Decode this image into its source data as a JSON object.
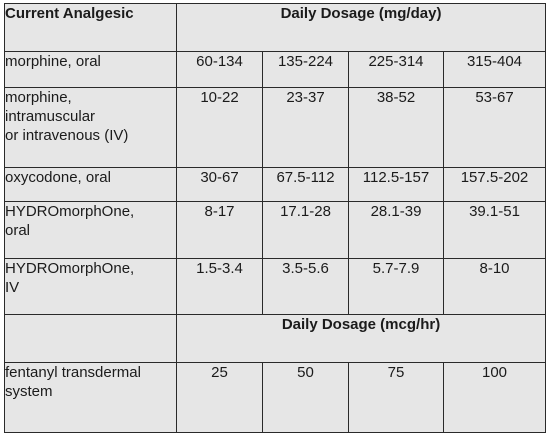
{
  "table": {
    "col_header_left": "Current Analgesic",
    "section1_header": "Daily Dosage (mg/day)",
    "section2_header": "Daily Dosage (mcg/hr)",
    "rows_mg": [
      {
        "drug": "morphine, oral",
        "values": [
          "60-134",
          "135-224",
          "225-314",
          "315-404"
        ]
      },
      {
        "drug": "morphine,\nintramuscular\nor intravenous (IV)",
        "values": [
          "10-22",
          "23-37",
          "38-52",
          "53-67"
        ]
      },
      {
        "drug": "oxycodone, oral",
        "values": [
          "30-67",
          "67.5-112",
          "112.5-157",
          "157.5-202"
        ]
      },
      {
        "drug": "HYDROmorphOne,\noral",
        "values": [
          "8-17",
          "17.1-28",
          "28.1-39",
          "39.1-51"
        ]
      },
      {
        "drug": "HYDROmorphOne,\nIV",
        "values": [
          "1.5-3.4",
          "3.5-5.6",
          "5.7-7.9",
          "8-10"
        ]
      }
    ],
    "rows_mcg": [
      {
        "drug": "fentanyl transdermal\nsystem",
        "values": [
          "25",
          "50",
          "75",
          "100"
        ]
      }
    ]
  }
}
